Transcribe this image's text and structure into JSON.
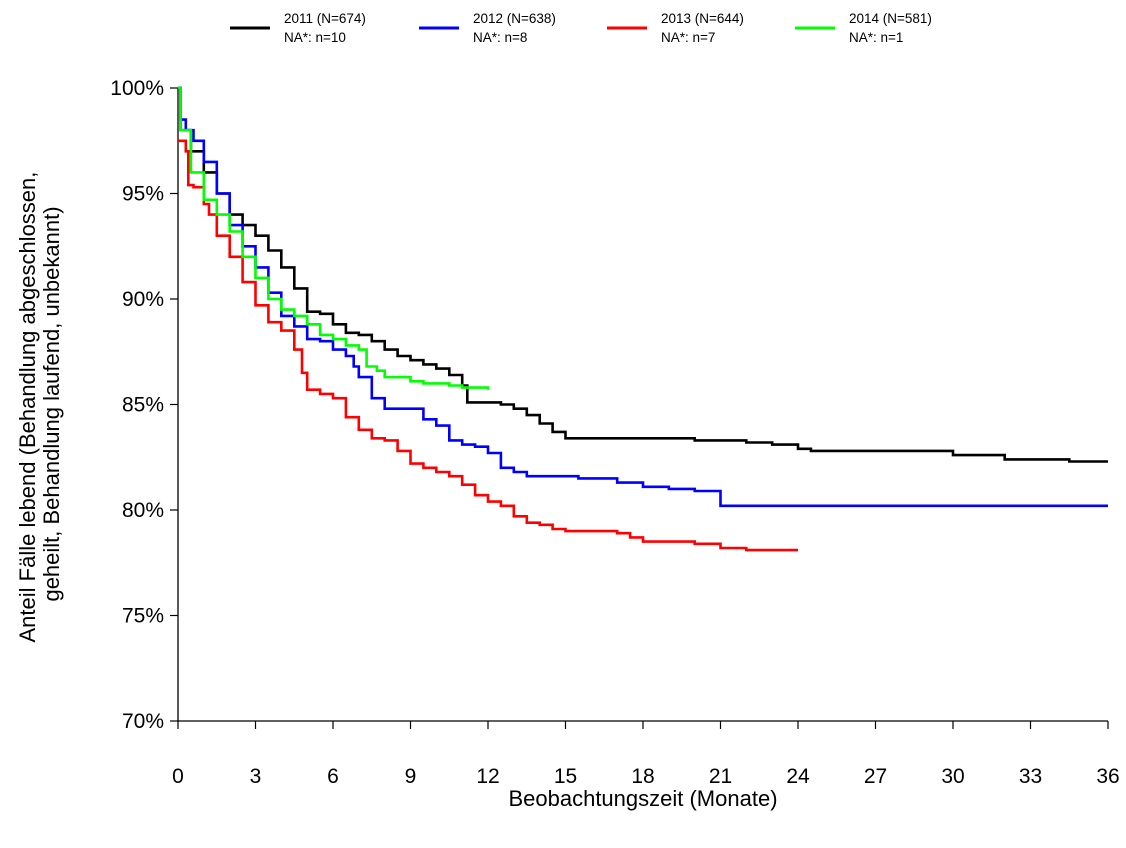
{
  "chart_data": {
    "type": "line",
    "xlabel": "Beobachtungszeit (Monate)",
    "ylabel_lines": [
      "Anteil Fälle lebend (Behandlung abgeschlossen,",
      "geheilt, Behandlung laufend, unbekannt)"
    ],
    "xlim": [
      0,
      36
    ],
    "ylim": [
      70,
      100
    ],
    "x_ticks": [
      "0",
      "3",
      "6",
      "9",
      "12",
      "15",
      "18",
      "21",
      "24",
      "27",
      "30",
      "33",
      "36"
    ],
    "y_ticks": [
      "70%",
      "75%",
      "80%",
      "85%",
      "90%",
      "95%",
      "100%"
    ],
    "legend_position": "top",
    "series": [
      {
        "name": "2011 (N=674)",
        "sub": "NA*: n=10",
        "color": "#000000",
        "points": [
          [
            0,
            100
          ],
          [
            0.1,
            98
          ],
          [
            0.5,
            97
          ],
          [
            1,
            96
          ],
          [
            1.5,
            95
          ],
          [
            2,
            94
          ],
          [
            2.5,
            93.5
          ],
          [
            3,
            93
          ],
          [
            3.5,
            92.3
          ],
          [
            4,
            91.5
          ],
          [
            4.5,
            90.5
          ],
          [
            5,
            89.4
          ],
          [
            5.5,
            89.3
          ],
          [
            6,
            88.8
          ],
          [
            6.5,
            88.4
          ],
          [
            7,
            88.3
          ],
          [
            7.5,
            88
          ],
          [
            8,
            87.6
          ],
          [
            8.5,
            87.3
          ],
          [
            9,
            87.1
          ],
          [
            9.5,
            86.9
          ],
          [
            10,
            86.7
          ],
          [
            10.5,
            86.4
          ],
          [
            11,
            85.9
          ],
          [
            11.2,
            85.1
          ],
          [
            12,
            85.1
          ],
          [
            12.5,
            85
          ],
          [
            13,
            84.8
          ],
          [
            13.5,
            84.5
          ],
          [
            14,
            84.1
          ],
          [
            14.5,
            83.7
          ],
          [
            15,
            83.4
          ],
          [
            16,
            83.4
          ],
          [
            17,
            83.4
          ],
          [
            18,
            83.4
          ],
          [
            19,
            83.4
          ],
          [
            20,
            83.3
          ],
          [
            21,
            83.3
          ],
          [
            22,
            83.2
          ],
          [
            23,
            83.1
          ],
          [
            24,
            82.9
          ],
          [
            24.5,
            82.8
          ],
          [
            26,
            82.8
          ],
          [
            28,
            82.8
          ],
          [
            29.5,
            82.8
          ],
          [
            30,
            82.6
          ],
          [
            31,
            82.6
          ],
          [
            32,
            82.4
          ],
          [
            33,
            82.4
          ],
          [
            34,
            82.4
          ],
          [
            34.5,
            82.3
          ],
          [
            36,
            82.3
          ]
        ]
      },
      {
        "name": "2012 (N=638)",
        "sub": "NA*: n=8",
        "color": "#0000ff",
        "points": [
          [
            0,
            100
          ],
          [
            0.1,
            98.5
          ],
          [
            0.3,
            98
          ],
          [
            0.6,
            97.5
          ],
          [
            1,
            96.5
          ],
          [
            1.5,
            95
          ],
          [
            2,
            93.5
          ],
          [
            2.5,
            92.5
          ],
          [
            3,
            91.5
          ],
          [
            3.5,
            90.3
          ],
          [
            4,
            89.2
          ],
          [
            4.5,
            88.7
          ],
          [
            5,
            88.1
          ],
          [
            5.5,
            88
          ],
          [
            6,
            87.6
          ],
          [
            6.5,
            87.3
          ],
          [
            6.8,
            86.8
          ],
          [
            7,
            86.3
          ],
          [
            7.5,
            85.3
          ],
          [
            8,
            84.8
          ],
          [
            9,
            84.8
          ],
          [
            9.5,
            84.3
          ],
          [
            10,
            84
          ],
          [
            10.5,
            83.3
          ],
          [
            11,
            83.1
          ],
          [
            11.5,
            83
          ],
          [
            12,
            82.7
          ],
          [
            12.5,
            82
          ],
          [
            13,
            81.8
          ],
          [
            13.5,
            81.6
          ],
          [
            15,
            81.6
          ],
          [
            15.5,
            81.5
          ],
          [
            16,
            81.5
          ],
          [
            17,
            81.3
          ],
          [
            18,
            81.1
          ],
          [
            19,
            81
          ],
          [
            20,
            80.9
          ],
          [
            21,
            80.2
          ],
          [
            22,
            80.2
          ],
          [
            24,
            80.2
          ],
          [
            27,
            80.2
          ],
          [
            30,
            80.2
          ],
          [
            33,
            80.2
          ],
          [
            36,
            80.2
          ]
        ]
      },
      {
        "name": "2013 (N=644)",
        "sub": "NA*: n=7",
        "color": "#ff0000",
        "points": [
          [
            0,
            97.5
          ],
          [
            0.3,
            97
          ],
          [
            0.4,
            95.4
          ],
          [
            0.6,
            95.3
          ],
          [
            1,
            94.5
          ],
          [
            1.2,
            94
          ],
          [
            1.5,
            93
          ],
          [
            2,
            92
          ],
          [
            2.5,
            90.8
          ],
          [
            3,
            89.7
          ],
          [
            3.5,
            88.9
          ],
          [
            4,
            88.5
          ],
          [
            4.5,
            87.6
          ],
          [
            4.8,
            86.5
          ],
          [
            5,
            85.7
          ],
          [
            5.5,
            85.5
          ],
          [
            6,
            85.3
          ],
          [
            6.5,
            84.4
          ],
          [
            7,
            83.8
          ],
          [
            7.5,
            83.4
          ],
          [
            8,
            83.3
          ],
          [
            8.5,
            82.8
          ],
          [
            9,
            82.2
          ],
          [
            9.5,
            82
          ],
          [
            10,
            81.8
          ],
          [
            10.5,
            81.6
          ],
          [
            11,
            81.2
          ],
          [
            11.5,
            80.7
          ],
          [
            12,
            80.4
          ],
          [
            12.5,
            80.2
          ],
          [
            13,
            79.7
          ],
          [
            13.5,
            79.4
          ],
          [
            14,
            79.3
          ],
          [
            14.5,
            79.1
          ],
          [
            15,
            79
          ],
          [
            16,
            79
          ],
          [
            17,
            78.9
          ],
          [
            17.5,
            78.7
          ],
          [
            18,
            78.5
          ],
          [
            19,
            78.5
          ],
          [
            20,
            78.4
          ],
          [
            21,
            78.2
          ],
          [
            22,
            78.1
          ],
          [
            23,
            78.1
          ],
          [
            24,
            78.1
          ]
        ]
      },
      {
        "name": "2014 (N=581)",
        "sub": "NA*: n=1",
        "color": "#00ff00",
        "points": [
          [
            0,
            100
          ],
          [
            0.1,
            98
          ],
          [
            0.5,
            96
          ],
          [
            1,
            94.7
          ],
          [
            1.5,
            94
          ],
          [
            2,
            93.2
          ],
          [
            2.5,
            92
          ],
          [
            3,
            91
          ],
          [
            3.5,
            90
          ],
          [
            4,
            89.5
          ],
          [
            4.5,
            89.2
          ],
          [
            5,
            88.8
          ],
          [
            5.5,
            88.3
          ],
          [
            6,
            88.1
          ],
          [
            6.5,
            87.8
          ],
          [
            7,
            87.6
          ],
          [
            7.3,
            86.8
          ],
          [
            7.7,
            86.6
          ],
          [
            8,
            86.3
          ],
          [
            9,
            86.1
          ],
          [
            9.5,
            86
          ],
          [
            10,
            86
          ],
          [
            10.5,
            85.9
          ],
          [
            11,
            85.8
          ],
          [
            12,
            85.7
          ]
        ]
      }
    ]
  }
}
